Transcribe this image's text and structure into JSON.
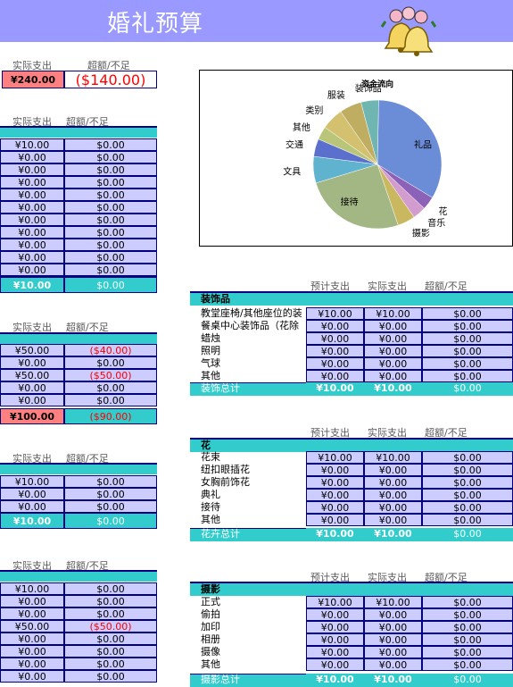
{
  "header": {
    "title": "婚礼预算",
    "bg": "#9999ff"
  },
  "top_summary": {
    "col_actual": "实际支出",
    "col_diff": "超额/不足",
    "actual": "¥240.00",
    "diff": "($140.00)"
  },
  "section1": {
    "col_actual": "实际支出",
    "col_diff": "超额/不足",
    "rows": [
      {
        "actual": "¥10.00",
        "diff": "$0.00"
      },
      {
        "actual": "¥0.00",
        "diff": "$0.00"
      },
      {
        "actual": "¥0.00",
        "diff": "$0.00"
      },
      {
        "actual": "¥0.00",
        "diff": "$0.00"
      },
      {
        "actual": "¥0.00",
        "diff": "$0.00"
      },
      {
        "actual": "¥0.00",
        "diff": "$0.00"
      },
      {
        "actual": "¥0.00",
        "diff": "$0.00"
      },
      {
        "actual": "¥0.00",
        "diff": "$0.00"
      },
      {
        "actual": "¥0.00",
        "diff": "$0.00"
      },
      {
        "actual": "¥0.00",
        "diff": "$0.00"
      },
      {
        "actual": "¥0.00",
        "diff": "$0.00"
      },
      {
        "actual": "¥0.00",
        "diff": "$0.00"
      }
    ],
    "total": {
      "actual": "¥10.00",
      "diff": "$0.00"
    }
  },
  "section2": {
    "col_actual": "实际支出",
    "col_diff": "超额/不足",
    "rows": [
      {
        "actual": "¥50.00",
        "diff": "($40.00)"
      },
      {
        "actual": "¥0.00",
        "diff": "$0.00"
      },
      {
        "actual": "¥50.00",
        "diff": "($50.00)"
      },
      {
        "actual": "¥0.00",
        "diff": "$0.00"
      },
      {
        "actual": "¥0.00",
        "diff": "$0.00"
      }
    ],
    "total": {
      "actual": "¥100.00",
      "diff": "($90.00)"
    }
  },
  "section3": {
    "col_actual": "实际支出",
    "col_diff": "超额/不足",
    "rows": [
      {
        "actual": "¥10.00",
        "diff": "$0.00"
      },
      {
        "actual": "¥0.00",
        "diff": "$0.00"
      },
      {
        "actual": "¥0.00",
        "diff": "$0.00"
      }
    ],
    "total": {
      "actual": "¥10.00",
      "diff": "$0.00"
    }
  },
  "section4": {
    "col_actual": "实际支出",
    "col_diff": "超额/不足",
    "rows": [
      {
        "actual": "¥10.00",
        "diff": "$0.00"
      },
      {
        "actual": "¥0.00",
        "diff": "$0.00"
      },
      {
        "actual": "¥0.00",
        "diff": "$0.00"
      },
      {
        "actual": "¥50.00",
        "diff": "($50.00)"
      },
      {
        "actual": "¥0.00",
        "diff": "$0.00"
      },
      {
        "actual": "¥0.00",
        "diff": "$0.00"
      },
      {
        "actual": "¥0.00",
        "diff": "$0.00"
      },
      {
        "actual": "¥0.00",
        "diff": "$0.00"
      }
    ]
  },
  "decor": {
    "col_est": "预计支出",
    "col_actual": "实际支出",
    "col_diff": "超额/不足",
    "category": "装饰品",
    "rows": [
      {
        "item": "教堂座椅/其他座位的装",
        "est": "¥10.00",
        "actual": "¥10.00",
        "diff": "$0.00"
      },
      {
        "item": "餐桌中心装饰品（花除",
        "est": "¥0.00",
        "actual": "¥0.00",
        "diff": "$0.00"
      },
      {
        "item": "蜡烛",
        "est": "¥0.00",
        "actual": "¥0.00",
        "diff": "$0.00"
      },
      {
        "item": "照明",
        "est": "¥0.00",
        "actual": "¥0.00",
        "diff": "$0.00"
      },
      {
        "item": "气球",
        "est": "¥0.00",
        "actual": "¥0.00",
        "diff": "$0.00"
      },
      {
        "item": "其他",
        "est": "¥0.00",
        "actual": "¥0.00",
        "diff": "$0.00"
      }
    ],
    "total": {
      "label": "装饰总计",
      "est": "¥10.00",
      "actual": "¥10.00",
      "diff": "$0.00"
    }
  },
  "flowers": {
    "col_est": "预计支出",
    "col_actual": "实际支出",
    "col_diff": "超额/不足",
    "category": "花",
    "rows": [
      {
        "item": "花束",
        "est": "¥10.00",
        "actual": "¥10.00",
        "diff": "$0.00"
      },
      {
        "item": "纽扣眼插花",
        "est": "¥0.00",
        "actual": "¥0.00",
        "diff": "$0.00"
      },
      {
        "item": "女胸前饰花",
        "est": "¥0.00",
        "actual": "¥0.00",
        "diff": "$0.00"
      },
      {
        "item": "典礼",
        "est": "¥0.00",
        "actual": "¥0.00",
        "diff": "$0.00"
      },
      {
        "item": "接待",
        "est": "¥0.00",
        "actual": "¥0.00",
        "diff": "$0.00"
      },
      {
        "item": "其他",
        "est": "¥0.00",
        "actual": "¥0.00",
        "diff": "$0.00"
      }
    ],
    "total": {
      "label": "花卉总计",
      "est": "¥10.00",
      "actual": "¥10.00",
      "diff": "$0.00"
    }
  },
  "photo": {
    "col_est": "预计支出",
    "col_actual": "实际支出",
    "col_diff": "超额/不足",
    "category": "摄影",
    "rows": [
      {
        "item": "正式",
        "est": "¥10.00",
        "actual": "¥10.00",
        "diff": "$0.00"
      },
      {
        "item": "偷拍",
        "est": "¥0.00",
        "actual": "¥0.00",
        "diff": "$0.00"
      },
      {
        "item": "加印",
        "est": "¥0.00",
        "actual": "¥0.00",
        "diff": "$0.00"
      },
      {
        "item": "相册",
        "est": "¥0.00",
        "actual": "¥0.00",
        "diff": "$0.00"
      },
      {
        "item": "摄像",
        "est": "¥0.00",
        "actual": "¥0.00",
        "diff": "$0.00"
      },
      {
        "item": "其他",
        "est": "¥0.00",
        "actual": "¥0.00",
        "diff": "$0.00"
      }
    ],
    "total": {
      "label": "摄影总计",
      "est": "¥10.00",
      "actual": "¥10.00",
      "diff": "$0.00"
    }
  },
  "chart_data": {
    "type": "pie",
    "title": "资金流向",
    "categories": [
      "礼品",
      "花",
      "音乐",
      "摄影",
      "接待",
      "文具",
      "交通",
      "其他",
      "类别",
      "服装",
      "装饰品"
    ],
    "values": [
      30,
      3,
      3,
      4,
      23,
      6,
      4,
      3,
      5,
      5,
      4
    ],
    "colors": [
      "#6b8cd6",
      "#8c62b8",
      "#d39ccf",
      "#c9b860",
      "#a3b785",
      "#5fb3cf",
      "#5b6fcc",
      "#b9c67a",
      "#d4c170",
      "#bfae62",
      "#6fb6b2"
    ]
  },
  "colors": {
    "accent": "#33cccc",
    "cell": "#ccccff",
    "over": "#ff8080",
    "negative": "#ff0000"
  }
}
